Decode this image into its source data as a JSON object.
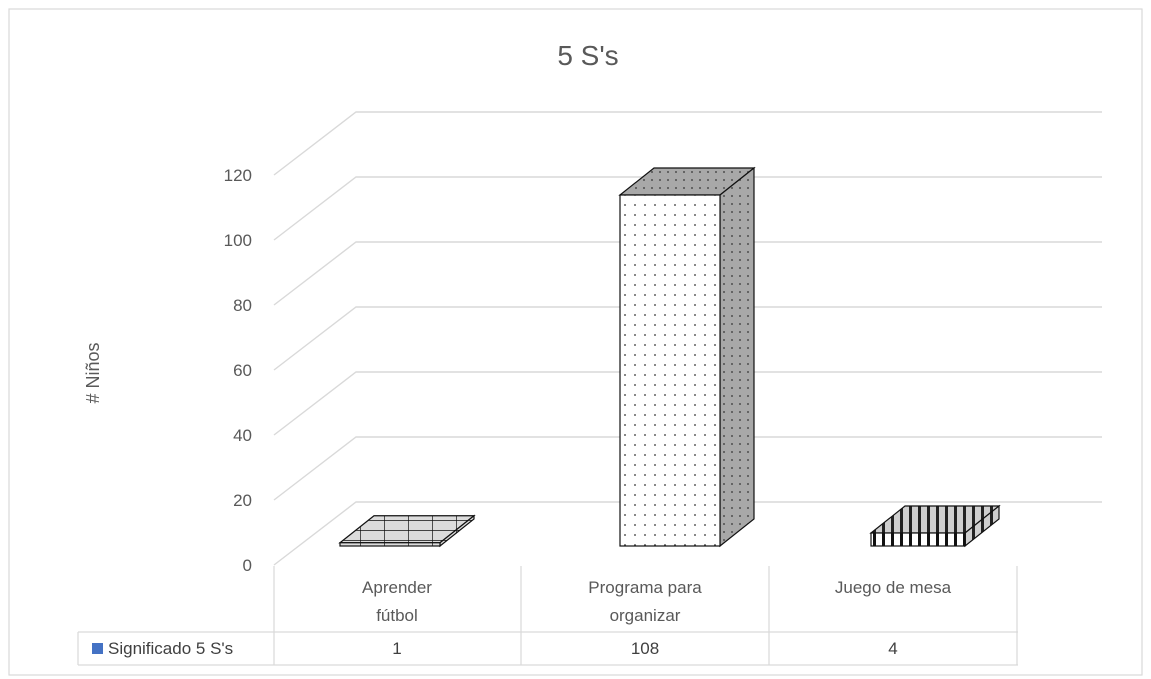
{
  "chart_data": {
    "type": "bar",
    "title": "5 S's",
    "xlabel": "",
    "ylabel": "# Niños",
    "ylim": [
      0,
      120
    ],
    "yticks": [
      "0",
      "20",
      "40",
      "60",
      "80",
      "100",
      "120"
    ],
    "categories": [
      "Aprender fútbol",
      "Programa para organizar",
      "Juego de mesa"
    ],
    "series": [
      {
        "name": "Significado 5 S's",
        "values": [
          1,
          108,
          4
        ],
        "data_labels": [
          "1",
          "108",
          "4"
        ]
      }
    ],
    "grid": true,
    "legend": "data-table",
    "colors": {
      "legend_key": "#4472c4",
      "gridline": "#d9d9d9",
      "text": "#595959"
    }
  }
}
